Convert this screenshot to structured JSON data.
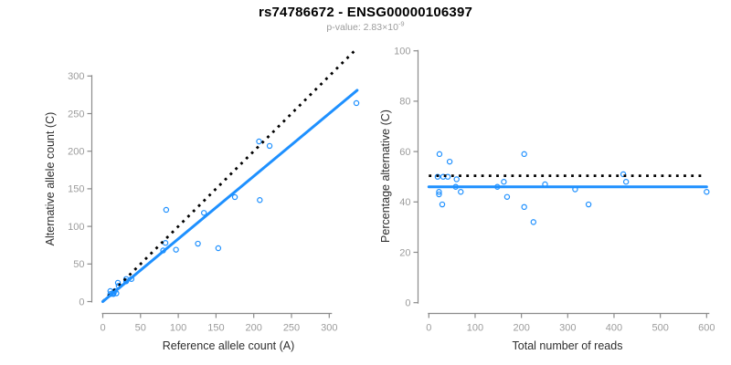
{
  "header": {
    "title": "rs74786672 - ENSG00000106397",
    "subtitle_prefix": "p-value: ",
    "p_mantissa": "2.83",
    "p_times": "×",
    "p_base": "10",
    "p_exponent": "-9"
  },
  "colors": {
    "point_blue": "#1E90FF",
    "fit_line_blue": "#1E90FF",
    "expected_line_black": "#000000",
    "axis_gray": "#8b8b8b",
    "tick_label_gray": "#9c9c9c",
    "axis_title_dark": "#2e2e2e",
    "subtitle_gray": "#9c9c9c"
  },
  "chart_data": [
    {
      "id": "allele-counts",
      "type": "scatter",
      "xlabel": "Reference allele count (A)",
      "ylabel": "Alternative allele count (C)",
      "xlim": [
        0,
        300
      ],
      "ylim": [
        0,
        300
      ],
      "xticks": [
        0,
        50,
        100,
        150,
        200,
        250,
        300
      ],
      "yticks": [
        0,
        50,
        100,
        150,
        200,
        250,
        300
      ],
      "grid": false,
      "legend": "none",
      "points": [
        [
          10,
          10
        ],
        [
          10,
          14
        ],
        [
          13,
          11
        ],
        [
          14,
          10
        ],
        [
          16,
          14
        ],
        [
          18,
          11
        ],
        [
          20,
          25
        ],
        [
          21,
          21
        ],
        [
          31,
          27
        ],
        [
          31,
          30
        ],
        [
          38,
          30
        ],
        [
          80,
          68
        ],
        [
          83,
          78
        ],
        [
          97,
          69
        ],
        [
          84,
          122
        ],
        [
          126,
          77
        ],
        [
          134,
          118
        ],
        [
          153,
          71
        ],
        [
          175,
          139
        ],
        [
          207,
          213
        ],
        [
          208,
          135
        ],
        [
          221,
          207
        ],
        [
          336,
          264
        ]
      ],
      "lines": [
        {
          "name": "expected-line",
          "style": "dotted",
          "from": [
            0,
            0
          ],
          "to": [
            337,
            337
          ]
        },
        {
          "name": "fit-line",
          "style": "solid",
          "from": [
            0,
            0
          ],
          "to": [
            337,
            281
          ]
        }
      ]
    },
    {
      "id": "percentage-alternative",
      "type": "scatter",
      "xlabel": "Total number of reads",
      "ylabel": "Percentage alternative (C)",
      "xlim": [
        0,
        600
      ],
      "ylim": [
        0,
        100
      ],
      "xticks": [
        0,
        100,
        200,
        300,
        400,
        500,
        600
      ],
      "yticks": [
        0,
        20,
        40,
        60,
        80,
        100
      ],
      "grid": false,
      "legend": "none",
      "points": [
        [
          19,
          50
        ],
        [
          22,
          43
        ],
        [
          22,
          44
        ],
        [
          23,
          59
        ],
        [
          29,
          39
        ],
        [
          31,
          50
        ],
        [
          41,
          50
        ],
        [
          45,
          56
        ],
        [
          58,
          46
        ],
        [
          60,
          49
        ],
        [
          69,
          44
        ],
        [
          148,
          46
        ],
        [
          162,
          48
        ],
        [
          169,
          42
        ],
        [
          206,
          38
        ],
        [
          206,
          59
        ],
        [
          226,
          32
        ],
        [
          251,
          47
        ],
        [
          316,
          45
        ],
        [
          345,
          39
        ],
        [
          420,
          51
        ],
        [
          426,
          48
        ],
        [
          600,
          44
        ]
      ],
      "lines": [
        {
          "name": "expected-line",
          "style": "dotted",
          "from": [
            0,
            50.4
          ],
          "to": [
            592,
            50.4
          ]
        },
        {
          "name": "fit-line",
          "style": "solid",
          "from": [
            0,
            46
          ],
          "to": [
            600,
            46
          ]
        }
      ]
    }
  ]
}
